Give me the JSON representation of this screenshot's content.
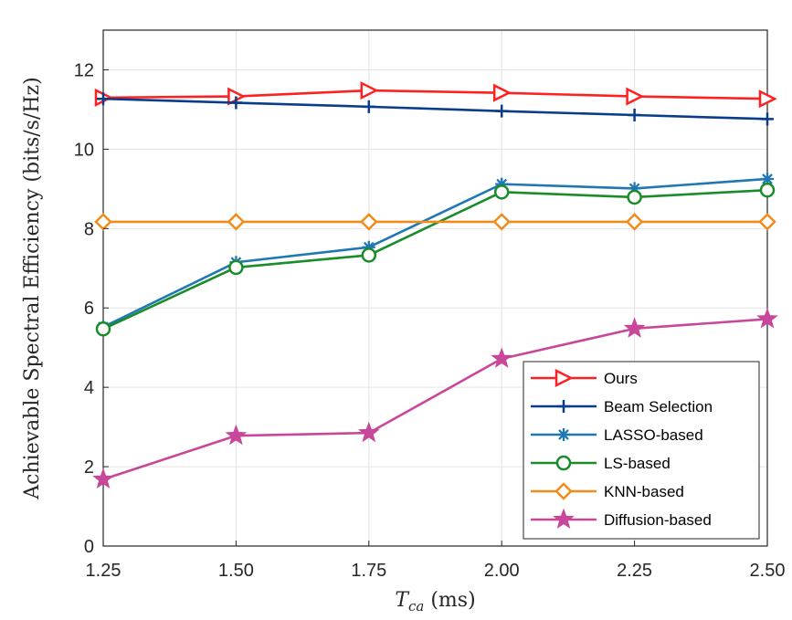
{
  "chart_data": {
    "type": "line",
    "x": [
      1.25,
      1.5,
      1.75,
      2.0,
      2.25,
      2.5
    ],
    "x_tick_labels": [
      "1.25",
      "1.50",
      "1.75",
      "2.00",
      "2.25",
      "2.50"
    ],
    "y_ticks": [
      0,
      2,
      4,
      6,
      8,
      10,
      12
    ],
    "xlim": [
      1.25,
      2.5
    ],
    "ylim": [
      0,
      13
    ],
    "xlabel": "T_ca (ms)",
    "xlabel_parts": {
      "symbol": "T",
      "subscript": "ca",
      "unit": " (ms)"
    },
    "ylabel": "Achievable Spectral Efficiency (bits/s/Hz)",
    "grid": true,
    "legend_position": "lower-right",
    "series": [
      {
        "name": "Ours",
        "color": "#ff2020",
        "marker": "triangle-right",
        "values": [
          11.3,
          11.33,
          11.48,
          11.42,
          11.33,
          11.27
        ]
      },
      {
        "name": "Beam Selection",
        "color": "#0b3c8c",
        "marker": "plus",
        "values": [
          11.27,
          11.17,
          11.07,
          10.96,
          10.86,
          10.76
        ]
      },
      {
        "name": "LASSO-based",
        "color": "#1f77b4",
        "marker": "asterisk",
        "values": [
          5.52,
          7.15,
          7.53,
          9.12,
          9.01,
          9.25
        ]
      },
      {
        "name": "LS-based",
        "color": "#1a8c2a",
        "marker": "circle",
        "values": [
          5.47,
          7.02,
          7.33,
          8.92,
          8.79,
          8.97
        ]
      },
      {
        "name": "KNN-based",
        "color": "#f08c1a",
        "marker": "diamond",
        "values": [
          8.17,
          8.17,
          8.17,
          8.17,
          8.17,
          8.17
        ]
      },
      {
        "name": "Diffusion-based",
        "color": "#c8479a",
        "marker": "star",
        "values": [
          1.68,
          2.78,
          2.85,
          4.72,
          5.48,
          5.72
        ]
      }
    ]
  }
}
